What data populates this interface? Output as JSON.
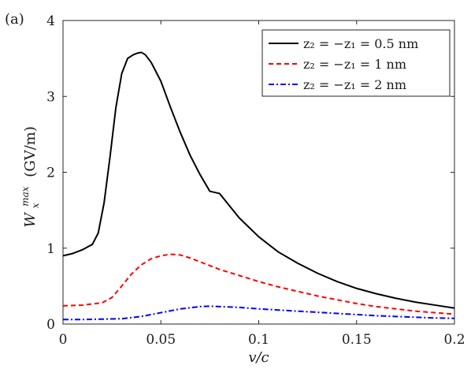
{
  "panel_label": "(a)",
  "chart_data": {
    "type": "line",
    "xlabel": "v/c",
    "ylabel": "W_x^max (GV/m)",
    "ylabel_parts": {
      "symbol": "W",
      "sub": "x",
      "sup": "max",
      "unit": "(GV/m)"
    },
    "xlim": [
      0,
      0.2
    ],
    "ylim": [
      0,
      4
    ],
    "xticks": [
      0,
      0.05,
      0.1,
      0.15,
      0.2
    ],
    "xtick_labels": [
      "0",
      "0.05",
      "0.1",
      "0.15",
      "0.2"
    ],
    "yticks": [
      0,
      1,
      2,
      3,
      4
    ],
    "ytick_labels": [
      "0",
      "1",
      "2",
      "3",
      "4"
    ],
    "grid": false,
    "legend_position": "top-right",
    "series": [
      {
        "name": "z₂ = −z₁ = 0.5 nm",
        "color": "#000000",
        "dash": "solid",
        "x": [
          0,
          0.005,
          0.01,
          0.015,
          0.018,
          0.021,
          0.024,
          0.027,
          0.03,
          0.033,
          0.036,
          0.038,
          0.04,
          0.042,
          0.045,
          0.05,
          0.055,
          0.06,
          0.065,
          0.07,
          0.075,
          0.08,
          0.09,
          0.1,
          0.11,
          0.12,
          0.13,
          0.14,
          0.15,
          0.16,
          0.17,
          0.18,
          0.19,
          0.2
        ],
        "y": [
          0.9,
          0.93,
          0.98,
          1.05,
          1.2,
          1.6,
          2.2,
          2.85,
          3.3,
          3.5,
          3.55,
          3.57,
          3.58,
          3.55,
          3.45,
          3.2,
          2.85,
          2.52,
          2.22,
          1.97,
          1.75,
          1.72,
          1.4,
          1.15,
          0.95,
          0.8,
          0.67,
          0.56,
          0.47,
          0.4,
          0.34,
          0.29,
          0.25,
          0.21
        ]
      },
      {
        "name": "z₂ = −z₁ = 1 nm",
        "color": "#ff0000",
        "dash": "dashed",
        "x": [
          0,
          0.01,
          0.02,
          0.025,
          0.03,
          0.035,
          0.04,
          0.045,
          0.05,
          0.055,
          0.06,
          0.065,
          0.07,
          0.08,
          0.09,
          0.1,
          0.11,
          0.12,
          0.13,
          0.14,
          0.15,
          0.16,
          0.17,
          0.18,
          0.19,
          0.2
        ],
        "y": [
          0.24,
          0.25,
          0.28,
          0.35,
          0.5,
          0.66,
          0.78,
          0.86,
          0.9,
          0.92,
          0.91,
          0.87,
          0.82,
          0.72,
          0.64,
          0.56,
          0.49,
          0.43,
          0.37,
          0.32,
          0.27,
          0.23,
          0.2,
          0.17,
          0.15,
          0.13
        ]
      },
      {
        "name": "z₂ = −z₁ = 2 nm",
        "color": "#0000ff",
        "dash": "dashdot",
        "x": [
          0,
          0.01,
          0.02,
          0.03,
          0.04,
          0.05,
          0.06,
          0.07,
          0.075,
          0.08,
          0.09,
          0.1,
          0.11,
          0.12,
          0.13,
          0.14,
          0.15,
          0.16,
          0.17,
          0.18,
          0.19,
          0.2
        ],
        "y": [
          0.06,
          0.06,
          0.065,
          0.07,
          0.1,
          0.15,
          0.2,
          0.23,
          0.235,
          0.23,
          0.22,
          0.2,
          0.185,
          0.17,
          0.155,
          0.14,
          0.125,
          0.11,
          0.1,
          0.09,
          0.08,
          0.075
        ]
      }
    ]
  }
}
